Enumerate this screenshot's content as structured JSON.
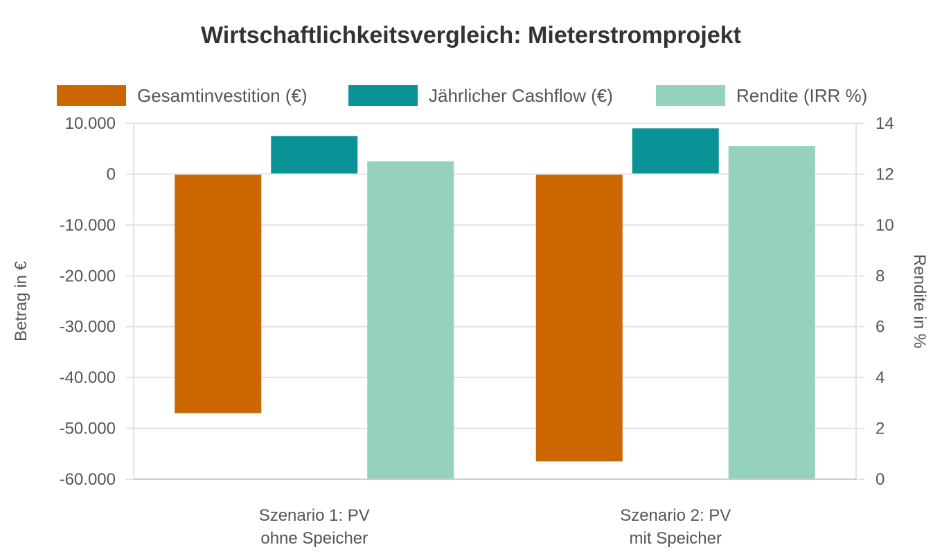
{
  "chart_data": {
    "type": "bar",
    "title": "Wirtschaftlichkeitsvergleich: Mieterstromprojekt",
    "categories": [
      [
        "Szenario 1: PV",
        "ohne Speicher"
      ],
      [
        "Szenario 2: PV",
        "mit Speicher"
      ]
    ],
    "series": [
      {
        "name": "Gesamtinvestition (€)",
        "axis": "left",
        "color": "#cc6600",
        "values": [
          -47000,
          -56500
        ]
      },
      {
        "name": "Jährlicher Cashflow (€)",
        "axis": "left",
        "color": "#0a9396",
        "values": [
          7500,
          9000
        ]
      },
      {
        "name": "Rendite (IRR %)",
        "axis": "right",
        "color": "#94d2bd",
        "values": [
          12.5,
          13.1
        ]
      }
    ],
    "y_left": {
      "label": "Betrag in €",
      "ylim": [
        -60000,
        10000
      ],
      "ticks": [
        10000,
        0,
        -10000,
        -20000,
        -30000,
        -40000,
        -50000,
        -60000
      ],
      "tick_labels": [
        "10.000",
        "0",
        "-10.000",
        "-20.000",
        "-30.000",
        "-40.000",
        "-50.000",
        "-60.000"
      ]
    },
    "y_right": {
      "label": "Rendite in %",
      "ylim": [
        0,
        14
      ],
      "ticks": [
        14,
        12,
        10,
        8,
        6,
        4,
        2,
        0
      ],
      "tick_labels": [
        "14",
        "12",
        "10",
        "8",
        "6",
        "4",
        "2",
        "0"
      ]
    },
    "legend_position": "top",
    "grid": true
  }
}
